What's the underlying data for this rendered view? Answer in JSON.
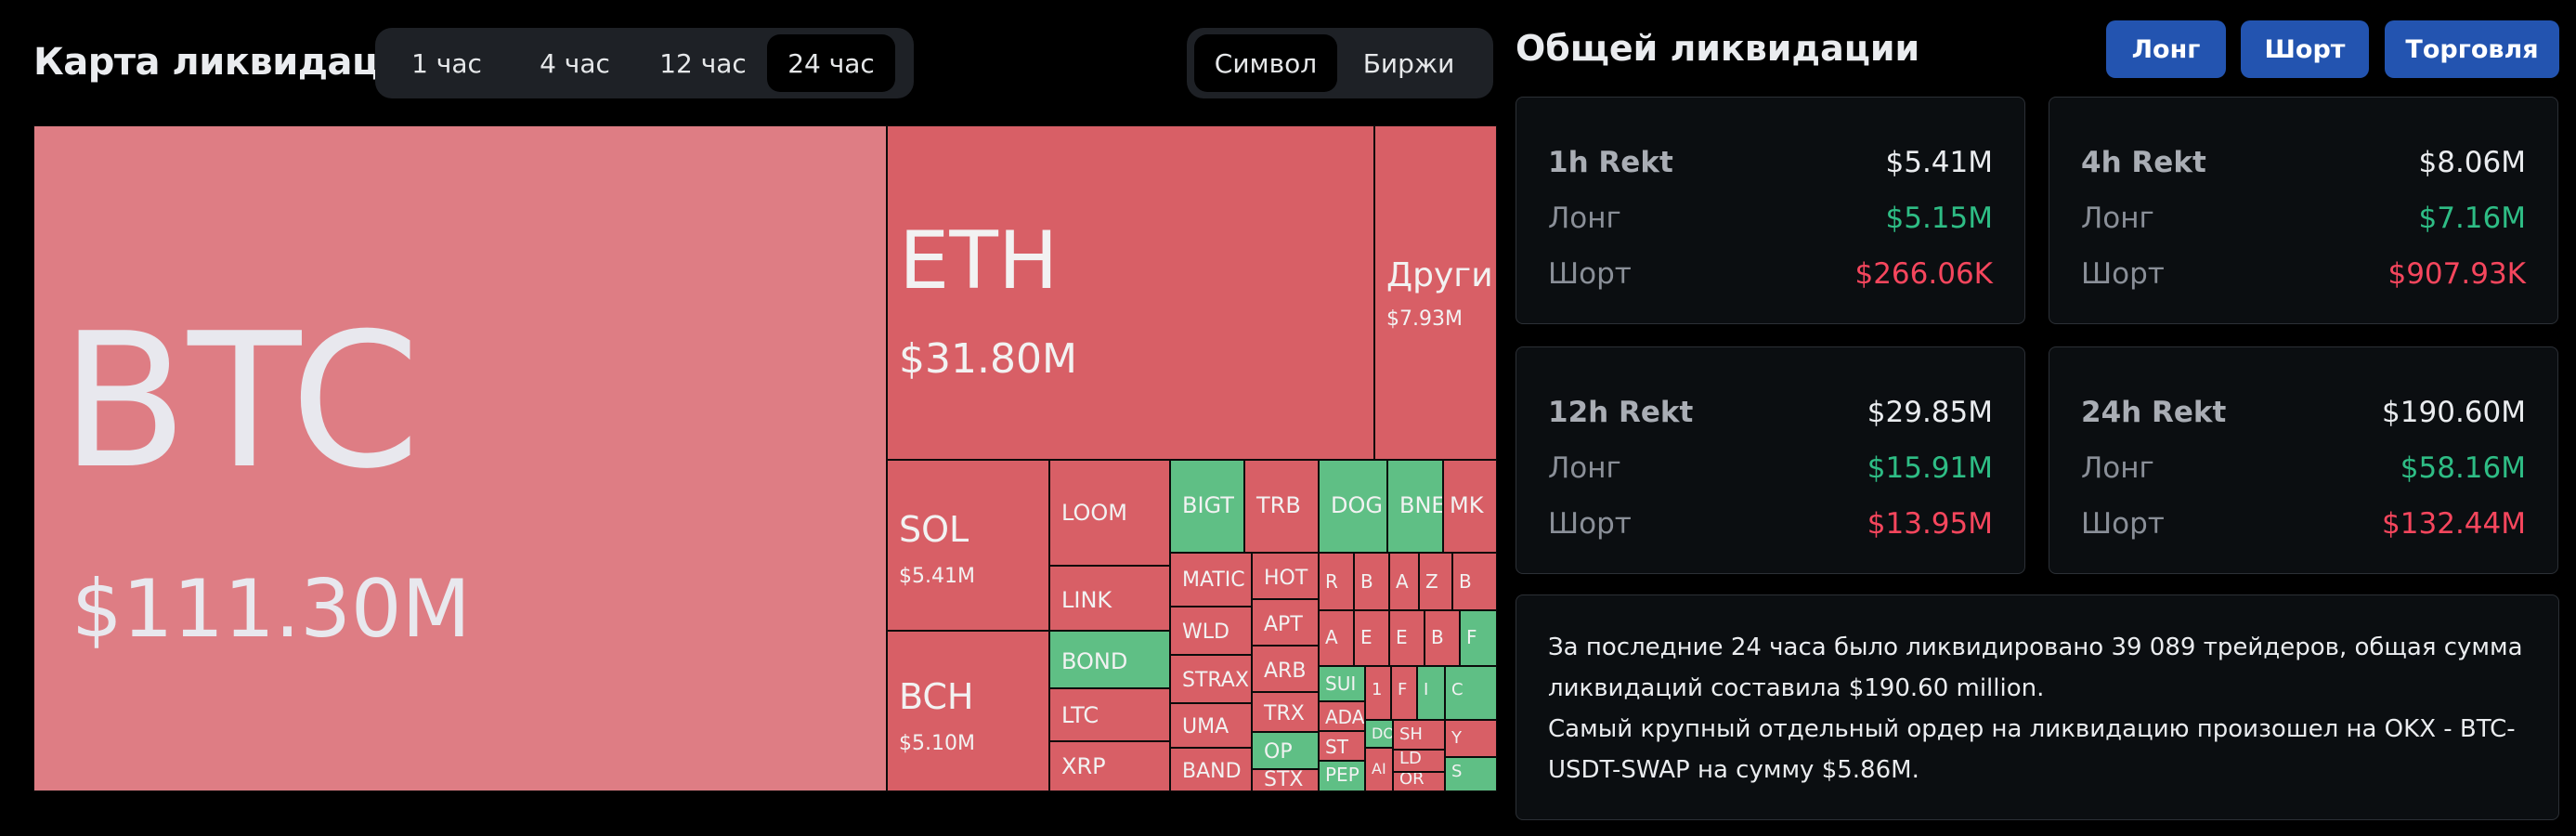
{
  "header": {
    "title": "Карта ликвидаций",
    "time_tabs": [
      {
        "label": "1 час",
        "active": false
      },
      {
        "label": "4 час",
        "active": false
      },
      {
        "label": "12 час",
        "active": false
      },
      {
        "label": "24 час",
        "active": true
      }
    ],
    "group_tabs": [
      {
        "label": "Символ",
        "active": true
      },
      {
        "label": "Биржи",
        "active": false
      }
    ]
  },
  "treemap": [
    {
      "symbol": "BTC",
      "amount": "$111.30M",
      "side": "long"
    },
    {
      "symbol": "ETH",
      "amount": "$31.80M",
      "side": "long"
    },
    {
      "symbol": "Други",
      "amount": "$7.93M",
      "side": "long"
    },
    {
      "symbol": "SOL",
      "amount": "$5.41M",
      "side": "long"
    },
    {
      "symbol": "BCH",
      "amount": "$5.10M",
      "side": "long"
    },
    {
      "symbol": "LOOM",
      "side": "long"
    },
    {
      "symbol": "LINK",
      "side": "long"
    },
    {
      "symbol": "BOND",
      "side": "short"
    },
    {
      "symbol": "LTC",
      "side": "long"
    },
    {
      "symbol": "XRP",
      "side": "long"
    },
    {
      "symbol": "BIGT",
      "side": "short"
    },
    {
      "symbol": "TRB",
      "side": "long"
    },
    {
      "symbol": "DOG",
      "side": "short"
    },
    {
      "symbol": "BNE",
      "side": "short"
    },
    {
      "symbol": "MK",
      "side": "long"
    },
    {
      "symbol": "MATIC",
      "side": "long"
    },
    {
      "symbol": "HOT",
      "side": "long"
    },
    {
      "symbol": "R",
      "side": "long"
    },
    {
      "symbol": "B",
      "side": "long"
    },
    {
      "symbol": "A",
      "side": "long"
    },
    {
      "symbol": "Z",
      "side": "long"
    },
    {
      "symbol": "B",
      "side": "long"
    },
    {
      "symbol": "WLD",
      "side": "long"
    },
    {
      "symbol": "APT",
      "side": "long"
    },
    {
      "symbol": "A",
      "side": "long"
    },
    {
      "symbol": "E",
      "side": "long"
    },
    {
      "symbol": "E",
      "side": "long"
    },
    {
      "symbol": "B",
      "side": "long"
    },
    {
      "symbol": "F",
      "side": "short"
    },
    {
      "symbol": "ARB",
      "side": "long"
    },
    {
      "symbol": "STRAX",
      "side": "long"
    },
    {
      "symbol": "TRX",
      "side": "long"
    },
    {
      "symbol": "SUI",
      "side": "short"
    },
    {
      "symbol": "1",
      "side": "long"
    },
    {
      "symbol": "F",
      "side": "long"
    },
    {
      "symbol": "I",
      "side": "short"
    },
    {
      "symbol": "C",
      "side": "short"
    },
    {
      "symbol": "UMA",
      "side": "long"
    },
    {
      "symbol": "OP",
      "side": "short"
    },
    {
      "symbol": "ADA",
      "side": "long"
    },
    {
      "symbol": "DOT",
      "side": "short"
    },
    {
      "symbol": "ST",
      "side": "long"
    },
    {
      "symbol": "SH",
      "side": "long"
    },
    {
      "symbol": "Y",
      "side": "long"
    },
    {
      "symbol": "BAND",
      "side": "long"
    },
    {
      "symbol": "STX",
      "side": "long"
    },
    {
      "symbol": "PEP",
      "side": "short"
    },
    {
      "symbol": "AI",
      "side": "long"
    },
    {
      "symbol": "LD",
      "side": "long"
    },
    {
      "symbol": "OR",
      "side": "long"
    },
    {
      "symbol": "S",
      "side": "short"
    }
  ],
  "right": {
    "title": "Общей ликвидации",
    "buttons": {
      "long": "Лонг",
      "short": "Шорт",
      "trade": "Торговля"
    },
    "cards": [
      {
        "title": "1h Rekt",
        "total": "$5.41M",
        "long_label": "Лонг",
        "long": "$5.15M",
        "short_label": "Шорт",
        "short": "$266.06K"
      },
      {
        "title": "4h Rekt",
        "total": "$8.06M",
        "long_label": "Лонг",
        "long": "$7.16M",
        "short_label": "Шорт",
        "short": "$907.93K"
      },
      {
        "title": "12h Rekt",
        "total": "$29.85M",
        "long_label": "Лонг",
        "long": "$15.91M",
        "short_label": "Шорт",
        "short": "$13.95M"
      },
      {
        "title": "24h Rekt",
        "total": "$190.60M",
        "long_label": "Лонг",
        "long": "$58.16M",
        "short_label": "Шорт",
        "short": "$132.44M"
      }
    ],
    "summary": {
      "line1": "За последние 24 часа было ликвидировано 39 089 трейдеров, общая сумма ликвидаций составила $190.60 million.",
      "line2": "Самый крупный отдельный ордер на ликвидацию произошел на OKX - BTC-USDT-SWAP на сумму $5.86M."
    }
  },
  "colors": {
    "long_red": "#d85f66",
    "btc_pink": "#de7d84",
    "short_green": "#5fbf85",
    "accent_blue": "#2354b0",
    "pos_green": "#2ebd85",
    "neg_red": "#f6465d"
  }
}
